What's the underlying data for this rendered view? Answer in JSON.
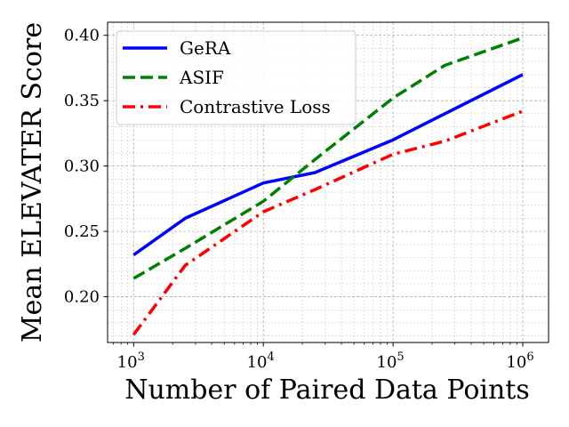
{
  "chart_data": {
    "type": "line",
    "title": "",
    "xlabel": "Number of Paired Data Points",
    "ylabel": "Mean ELEVATER Score",
    "xscale": "log",
    "xlim": [
      630,
      1580000
    ],
    "ylim": [
      0.165,
      0.41
    ],
    "x_ticks": [
      1000,
      10000,
      100000,
      1000000
    ],
    "x_tick_labels": [
      {
        "base": "10",
        "exp": "3"
      },
      {
        "base": "10",
        "exp": "4"
      },
      {
        "base": "10",
        "exp": "5"
      },
      {
        "base": "10",
        "exp": "6"
      }
    ],
    "y_ticks": [
      0.2,
      0.25,
      0.3,
      0.35,
      0.4
    ],
    "y_tick_labels": [
      "0.20",
      "0.25",
      "0.30",
      "0.35",
      "0.40"
    ],
    "grid": true,
    "legend_position": "top-left",
    "x": [
      1000,
      2500,
      10000,
      25000,
      100000,
      250000,
      1000000
    ],
    "series": [
      {
        "name": "GeRA",
        "color": "#0000ff",
        "style": "solid",
        "values": [
          0.232,
          0.26,
          0.287,
          0.295,
          0.32,
          0.34,
          0.37
        ]
      },
      {
        "name": "ASIF",
        "color": "#008000",
        "style": "dashed",
        "values": [
          0.214,
          0.237,
          0.273,
          0.305,
          0.352,
          0.377,
          0.398
        ]
      },
      {
        "name": "Contrastive Loss",
        "color": "#ff0000",
        "style": "dashdot",
        "values": [
          0.171,
          0.224,
          0.265,
          0.282,
          0.309,
          0.319,
          0.342
        ]
      }
    ]
  }
}
